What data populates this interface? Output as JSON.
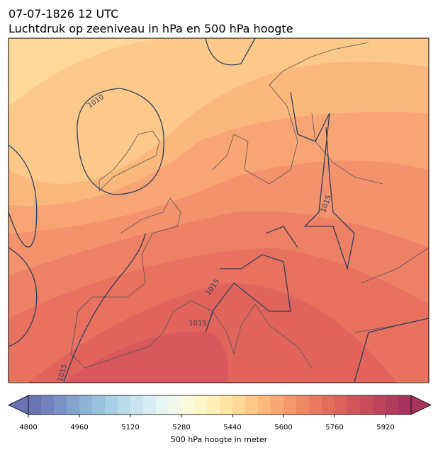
{
  "title": "07-07-1826 12 UTC",
  "subtitle": "Luchtdruk op zeeniveau in hPa en 500 hPa hoogte",
  "map": {
    "contour_labels": [
      "1010",
      "1015",
      "1015",
      "1015",
      "1015"
    ]
  },
  "colorbar": {
    "label": "500 hPa hoogte in meter",
    "lim": [
      4800,
      6000
    ],
    "ticks": [
      4800,
      4960,
      5120,
      5280,
      5440,
      5600,
      5760,
      5920
    ],
    "colors": [
      "#6b73b5",
      "#7282bd",
      "#7a92c5",
      "#83a3cd",
      "#8db3d6",
      "#99c2dd",
      "#a8cfe4",
      "#b8dbea",
      "#c9e5f0",
      "#d9eef3",
      "#e7f5f2",
      "#f2f9ea",
      "#f9fbdc",
      "#fdf8c9",
      "#fef0b7",
      "#fee5a6",
      "#fed896",
      "#fdc988",
      "#fbba7c",
      "#f9a973",
      "#f5986b",
      "#f08865",
      "#ea7961",
      "#e36d5d",
      "#db615b",
      "#d2565a",
      "#c84c5a",
      "#be445b",
      "#b23c5c",
      "#a6355d"
    ]
  }
}
